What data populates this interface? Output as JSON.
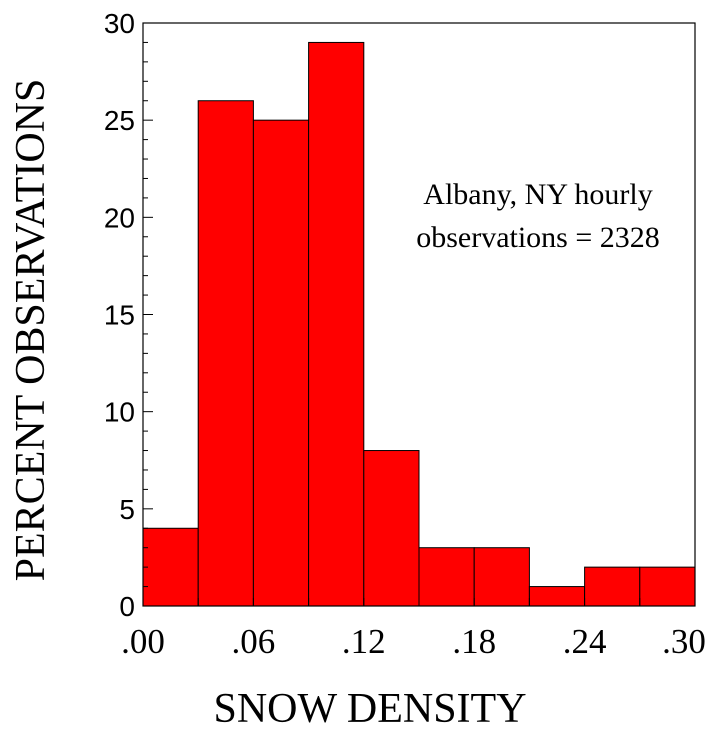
{
  "chart_data": {
    "type": "bar",
    "title": "",
    "xlabel": "SNOW DENSITY",
    "ylabel": "PERCENT OBSERVATIONS",
    "bin_edges": [
      0.0,
      0.03,
      0.06,
      0.09,
      0.12,
      0.15,
      0.18,
      0.21,
      0.24,
      0.27,
      0.3
    ],
    "values": [
      4,
      26,
      25,
      29,
      8,
      3,
      3,
      1,
      2,
      2
    ],
    "ylim": [
      0,
      30
    ],
    "xlim": [
      0.0,
      0.3
    ],
    "yticks": [
      {
        "value": 0,
        "label": "0"
      },
      {
        "value": 5,
        "label": "5"
      },
      {
        "value": 10,
        "label": "10"
      },
      {
        "value": 15,
        "label": "15"
      },
      {
        "value": 20,
        "label": "20"
      },
      {
        "value": 25,
        "label": "25"
      },
      {
        "value": 30,
        "label": "30"
      }
    ],
    "xticks": [
      {
        "value": 0.0,
        "label": ".00"
      },
      {
        "value": 0.06,
        "label": ".06"
      },
      {
        "value": 0.12,
        "label": ".12"
      },
      {
        "value": 0.18,
        "label": ".18"
      },
      {
        "value": 0.24,
        "label": ".24"
      },
      {
        "value": 0.3,
        "label": ".30"
      }
    ],
    "annotation": {
      "line1": "Albany, NY hourly",
      "line2": "observations = 2328"
    },
    "bar_color": "#ff0000",
    "edge_color": "#000000",
    "grid": false,
    "legend": "none"
  }
}
